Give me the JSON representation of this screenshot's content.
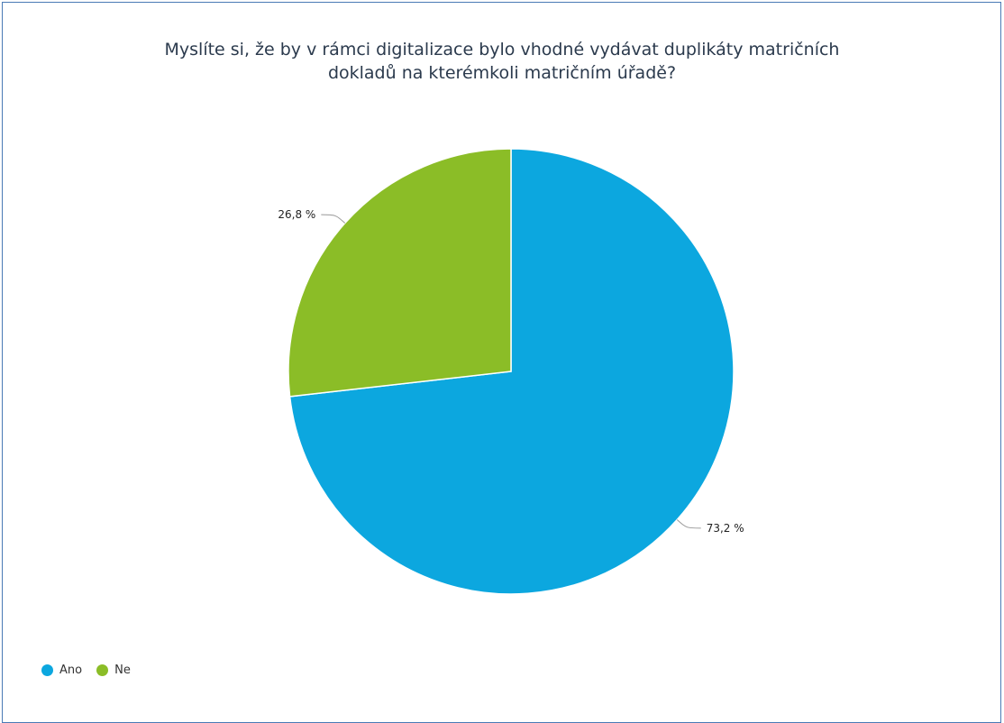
{
  "chart_data": {
    "type": "pie",
    "title": "Myslíte si, že by v rámci digitalizace bylo vhodné vydávat duplikáty matričních dokladů na kterémkoli matričním úřadě?",
    "title_lines": [
      "Myslíte si, že by v rámci digitalizace bylo vhodné vydávat duplikáty matričních",
      "dokladů na kterémkoli matričním úřadě?"
    ],
    "slices": [
      {
        "name": "Ano",
        "value": 73.2,
        "label": "73,2 %",
        "color": "#0ca7df"
      },
      {
        "name": "Ne",
        "value": 26.8,
        "label": "26,8 %",
        "color": "#8bbd27"
      }
    ],
    "start_angle_deg": 0,
    "direction": "clockwise",
    "legend_placement": "bottom-left"
  }
}
